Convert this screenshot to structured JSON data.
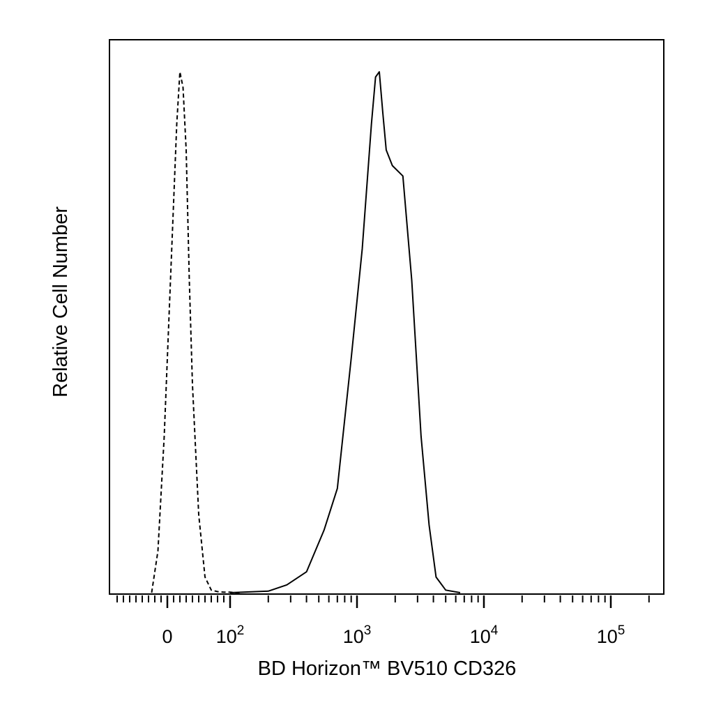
{
  "chart_data": {
    "type": "line",
    "xlabel": "BD Horizon™ BV510 CD326",
    "ylabel": "Relative Cell Number",
    "x_scale": "biexponential",
    "x_tick_labels": [
      {
        "base": "0",
        "exp": ""
      },
      {
        "base": "10",
        "exp": "2"
      },
      {
        "base": "10",
        "exp": "3"
      },
      {
        "base": "10",
        "exp": "4"
      },
      {
        "base": "10",
        "exp": "5"
      }
    ],
    "xlim": [
      -60,
      250000
    ],
    "ylim": [
      0,
      100
    ],
    "grid": false,
    "series": [
      {
        "style": "dashed",
        "x": [
          -25,
          -15,
          -5,
          5,
          15,
          20,
          25,
          30,
          35,
          40,
          50,
          60,
          70,
          80,
          90,
          100,
          110,
          120
        ],
        "y": [
          0,
          8,
          30,
          60,
          90,
          100,
          97,
          85,
          60,
          40,
          15,
          3,
          0.5,
          0.2,
          0.1,
          0.1,
          0,
          0
        ]
      },
      {
        "style": "solid",
        "x": [
          100,
          200,
          280,
          400,
          550,
          700,
          900,
          1100,
          1300,
          1400,
          1500,
          1600,
          1700,
          1900,
          2300,
          2700,
          3200,
          3700,
          4200,
          5000,
          6500
        ],
        "y": [
          0,
          0.3,
          1.5,
          4,
          12,
          20,
          45,
          66,
          90,
          99,
          100,
          92,
          85,
          82,
          80,
          60,
          30,
          13,
          3,
          0.5,
          0
        ]
      }
    ]
  }
}
